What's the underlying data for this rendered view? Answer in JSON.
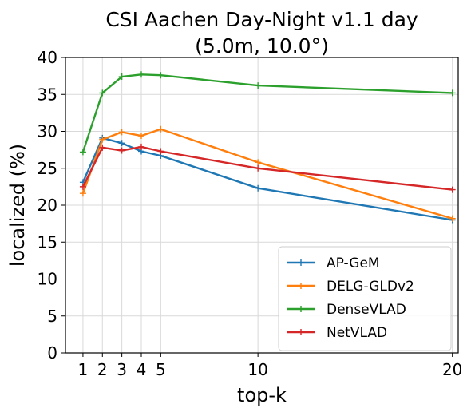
{
  "chart_data": {
    "type": "line",
    "title": "CSI Aachen Day-Night v1.1 day",
    "subtitle": "(5.0m, 10.0°)",
    "xlabel": "top-k",
    "ylabel": "localized (%)",
    "x": [
      1,
      2,
      3,
      4,
      5,
      10,
      20
    ],
    "xticks": [
      1,
      2,
      3,
      4,
      5,
      10,
      20
    ],
    "yticks": [
      0,
      5,
      10,
      15,
      20,
      25,
      30,
      35,
      40
    ],
    "xlim": [
      0.1,
      20.3
    ],
    "ylim": [
      0,
      40
    ],
    "grid": true,
    "legend_position": "lower-right",
    "series": [
      {
        "name": "AP-GeM",
        "color": "#1f77b4",
        "values": [
          23.1,
          29.1,
          28.4,
          27.3,
          26.7,
          22.3,
          18.0
        ]
      },
      {
        "name": "DELG-GLDv2",
        "color": "#ff7f0e",
        "values": [
          21.6,
          28.9,
          29.9,
          29.4,
          30.3,
          25.8,
          18.2
        ]
      },
      {
        "name": "DenseVLAD",
        "color": "#2ca02c",
        "values": [
          27.2,
          35.2,
          37.4,
          37.7,
          37.6,
          36.2,
          35.2
        ]
      },
      {
        "name": "NetVLAD",
        "color": "#d62728",
        "values": [
          22.5,
          27.8,
          27.4,
          27.9,
          27.3,
          25.0,
          22.1
        ]
      }
    ]
  }
}
